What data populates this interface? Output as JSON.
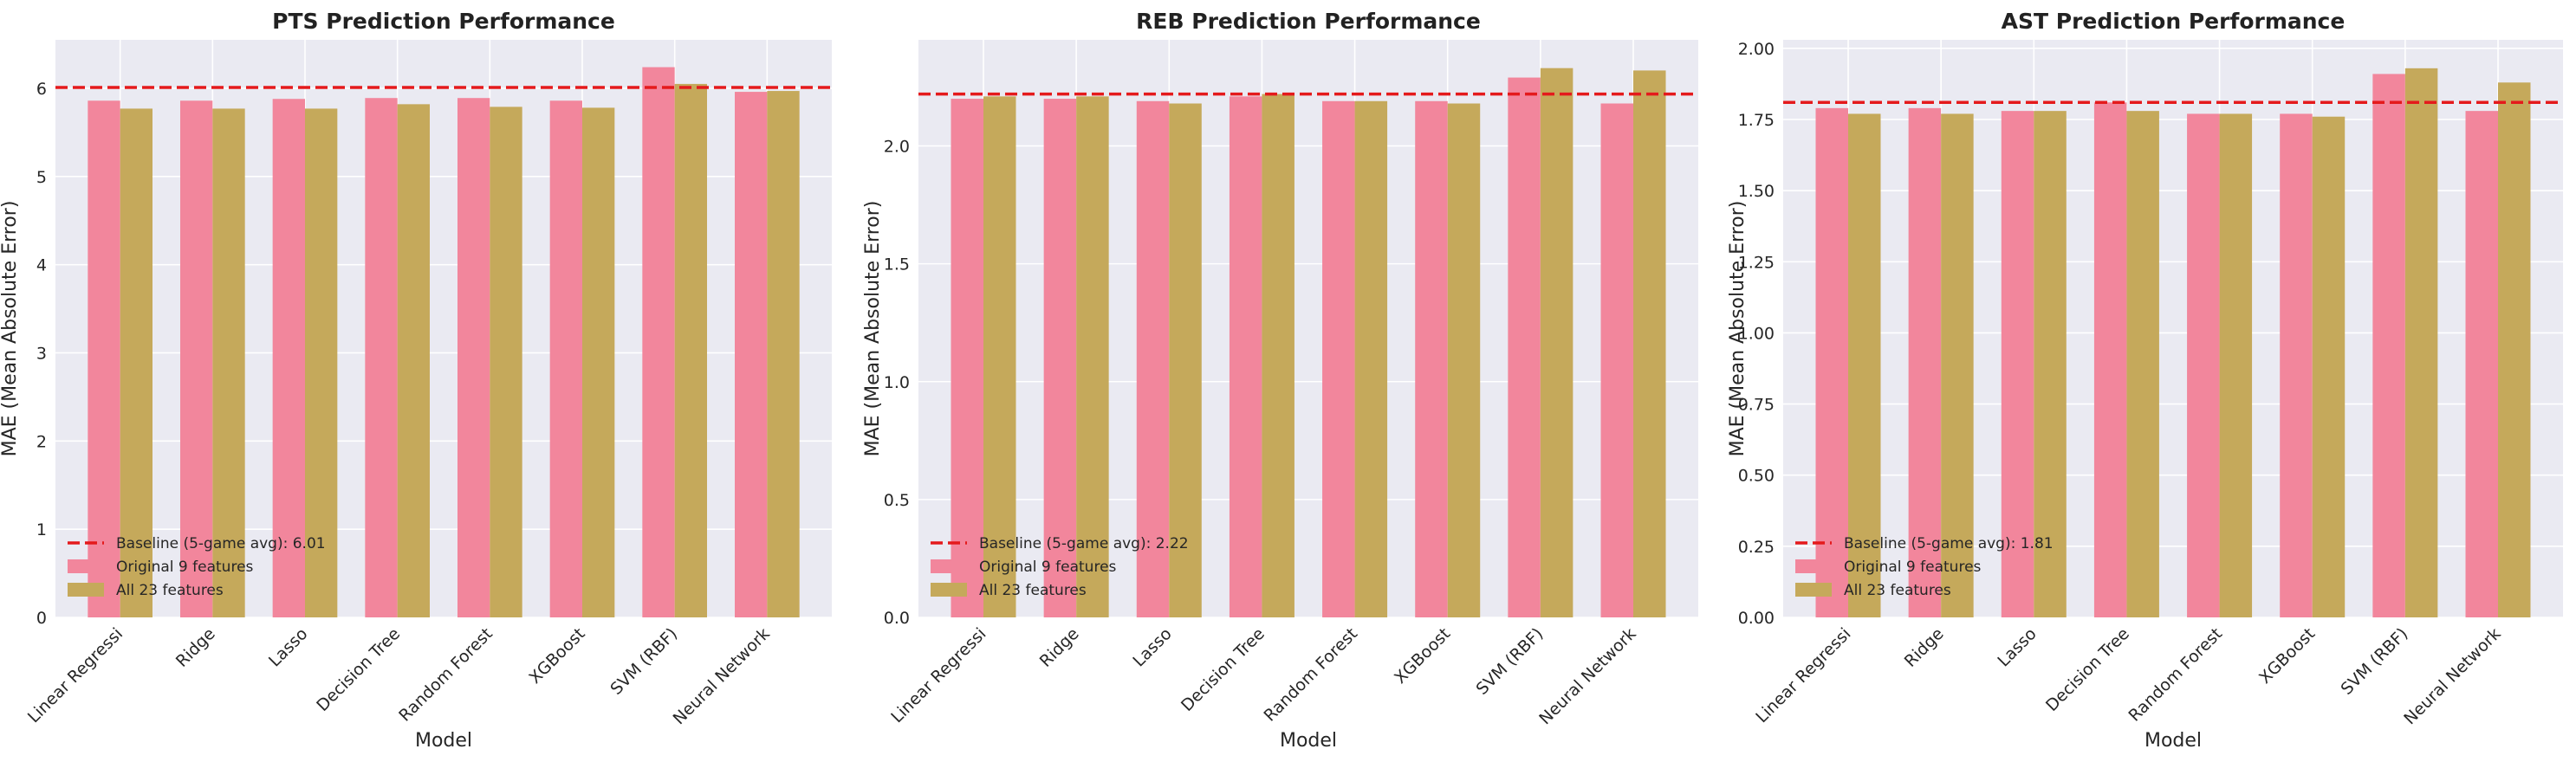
{
  "colors": {
    "background": "#eaeaf2",
    "grid": "#ffffff",
    "baseline": "#e41a1c",
    "original": "#f2869c",
    "all": "#c5a95b"
  },
  "legend": {
    "original_label": "Original 9 features",
    "all_label": "All 23 features"
  },
  "chart_data": [
    {
      "type": "bar",
      "title": "PTS Prediction Performance",
      "xlabel": "Model",
      "ylabel": "MAE (Mean Absolute Error)",
      "ylim": [
        0,
        6.55
      ],
      "yticks": [
        0,
        1,
        2,
        3,
        4,
        5,
        6
      ],
      "ytick_labels": [
        "0",
        "1",
        "2",
        "3",
        "4",
        "5",
        "6"
      ],
      "categories": [
        "Linear Regressi",
        "Ridge",
        "Lasso",
        "Decision Tree",
        "Random Forest",
        "XGBoost",
        "SVM (RBF)",
        "Neural Network"
      ],
      "series": [
        {
          "name": "Original 9 features",
          "values": [
            5.86,
            5.86,
            5.88,
            5.89,
            5.89,
            5.86,
            6.24,
            5.96
          ]
        },
        {
          "name": "All 23 features",
          "values": [
            5.77,
            5.77,
            5.77,
            5.82,
            5.79,
            5.78,
            6.05,
            5.97
          ]
        }
      ],
      "baseline": {
        "value": 6.01,
        "label": "Baseline (5-game avg): 6.01"
      },
      "grid": true,
      "legend_position": "lower-left"
    },
    {
      "type": "bar",
      "title": "REB Prediction Performance",
      "xlabel": "Model",
      "ylabel": "MAE (Mean Absolute Error)",
      "ylim": [
        0,
        2.45
      ],
      "yticks": [
        0,
        0.5,
        1.0,
        1.5,
        2.0
      ],
      "ytick_labels": [
        "0.0",
        "0.5",
        "1.0",
        "1.5",
        "2.0"
      ],
      "categories": [
        "Linear Regressi",
        "Ridge",
        "Lasso",
        "Decision Tree",
        "Random Forest",
        "XGBoost",
        "SVM (RBF)",
        "Neural Network"
      ],
      "series": [
        {
          "name": "Original 9 features",
          "values": [
            2.2,
            2.2,
            2.19,
            2.21,
            2.19,
            2.19,
            2.29,
            2.18
          ]
        },
        {
          "name": "All 23 features",
          "values": [
            2.21,
            2.21,
            2.18,
            2.22,
            2.19,
            2.18,
            2.33,
            2.32
          ]
        }
      ],
      "baseline": {
        "value": 2.22,
        "label": "Baseline (5-game avg): 2.22"
      },
      "grid": true,
      "legend_position": "lower-left"
    },
    {
      "type": "bar",
      "title": "AST Prediction Performance",
      "xlabel": "Model",
      "ylabel": "MAE (Mean Absolute Error)",
      "ylim": [
        0,
        2.03
      ],
      "yticks": [
        0,
        0.25,
        0.5,
        0.75,
        1.0,
        1.25,
        1.5,
        1.75,
        2.0
      ],
      "ytick_labels": [
        "0.00",
        "0.25",
        "0.50",
        "0.75",
        "1.00",
        "1.25",
        "1.50",
        "1.75",
        "2.00"
      ],
      "categories": [
        "Linear Regressi",
        "Ridge",
        "Lasso",
        "Decision Tree",
        "Random Forest",
        "XGBoost",
        "SVM (RBF)",
        "Neural Network"
      ],
      "series": [
        {
          "name": "Original 9 features",
          "values": [
            1.79,
            1.79,
            1.78,
            1.81,
            1.77,
            1.77,
            1.91,
            1.78
          ]
        },
        {
          "name": "All 23 features",
          "values": [
            1.77,
            1.77,
            1.78,
            1.78,
            1.77,
            1.76,
            1.93,
            1.88
          ]
        }
      ],
      "baseline": {
        "value": 1.81,
        "label": "Baseline (5-game avg): 1.81"
      },
      "grid": true,
      "legend_position": "lower-left"
    }
  ]
}
